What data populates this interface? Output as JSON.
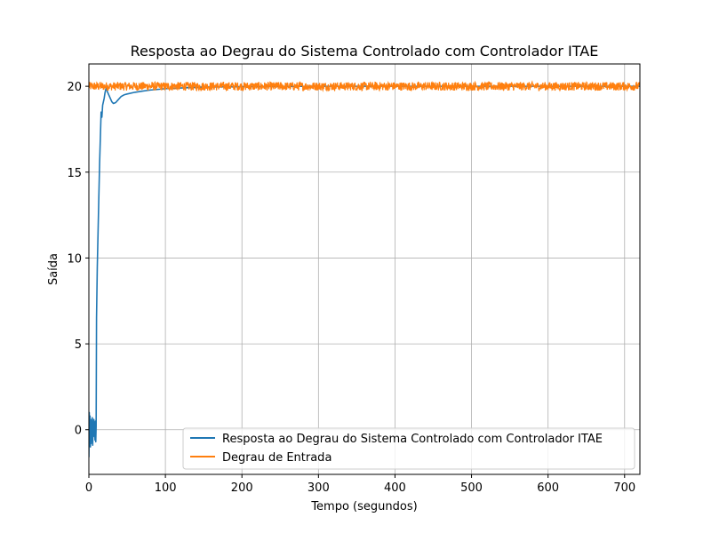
{
  "chart_data": {
    "type": "line",
    "title": "Resposta ao Degrau do Sistema Controlado com Controlador ITAE",
    "xlabel": "Tempo (segundos)",
    "ylabel": "Saída",
    "xlim": [
      0,
      720
    ],
    "ylim": [
      -2.6,
      21.3
    ],
    "xticks": [
      0,
      100,
      200,
      300,
      400,
      500,
      600,
      700
    ],
    "yticks": [
      0,
      5,
      10,
      15,
      20
    ],
    "xtick_labels": [
      "0",
      "100",
      "200",
      "300",
      "400",
      "500",
      "600",
      "700"
    ],
    "ytick_labels": [
      "0",
      "5",
      "10",
      "15",
      "20"
    ],
    "grid": true,
    "legend_position": "lower-right",
    "series": [
      {
        "name": "Resposta ao Degrau do Sistema Controlado com Controlador ITAE",
        "color": "#1f77b4",
        "x": [
          0,
          0.5,
          1,
          1.5,
          2,
          2.5,
          3,
          3.5,
          4,
          4.5,
          5,
          5.5,
          6,
          6.5,
          7,
          7.5,
          8,
          8.5,
          9,
          9.5,
          10,
          11,
          12,
          13,
          14,
          15,
          16,
          17,
          18,
          19,
          20,
          21,
          22,
          23,
          24,
          25,
          26,
          27,
          28,
          30,
          32,
          35,
          38,
          42,
          46,
          50,
          60,
          70,
          80,
          90,
          100,
          120,
          150,
          200,
          300,
          400,
          500,
          600,
          720
        ],
        "y": [
          -1.6,
          1.0,
          -0.6,
          0.8,
          -1.0,
          0.6,
          -0.8,
          0.5,
          -0.5,
          0.7,
          -0.9,
          0.3,
          -0.4,
          0.6,
          -0.2,
          0.4,
          -0.6,
          0.5,
          -0.7,
          0.2,
          6.5,
          9.5,
          11.5,
          13.5,
          15.5,
          17.0,
          18.5,
          18.2,
          18.9,
          19.1,
          19.3,
          19.6,
          19.8,
          19.9,
          19.7,
          19.6,
          19.5,
          19.4,
          19.3,
          19.1,
          19.0,
          19.05,
          19.2,
          19.4,
          19.5,
          19.55,
          19.65,
          19.72,
          19.78,
          19.82,
          19.86,
          19.9,
          19.95,
          19.98,
          20.0,
          20.0,
          20.0,
          20.0,
          20.0
        ]
      },
      {
        "name": "Degrau de Entrada",
        "color": "#ff7f0e",
        "x_start": 0,
        "x_end": 720,
        "value": 20,
        "noise_amplitude": 0.25
      }
    ]
  }
}
